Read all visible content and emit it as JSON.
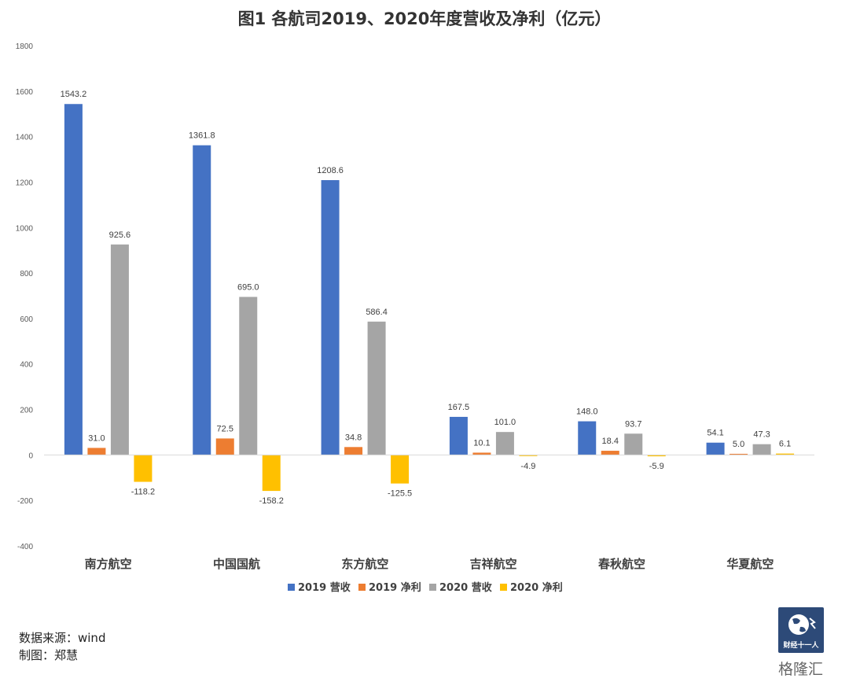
{
  "chart_data": {
    "type": "bar",
    "title": "图1 各航司2019、2020年度营收及净利（亿元）",
    "categories": [
      "南方航空",
      "中国国航",
      "东方航空",
      "吉祥航空",
      "春秋航空",
      "华夏航空"
    ],
    "series": [
      {
        "name": "2019 营收",
        "color": "#4472c4",
        "values": [
          1543.2,
          1361.8,
          1208.6,
          167.5,
          148.0,
          54.1
        ],
        "labels": [
          "1543.2",
          "1361.8",
          "1208.6",
          "167.5",
          "148.0",
          "54.1"
        ]
      },
      {
        "name": "2019 净利",
        "color": "#ed7d31",
        "values": [
          31.0,
          72.5,
          34.8,
          10.1,
          18.4,
          5.0
        ],
        "labels": [
          "31.0",
          "72.5",
          "34.8",
          "10.1",
          "18.4",
          "5.0"
        ]
      },
      {
        "name": "2020 营收",
        "color": "#a5a5a5",
        "values": [
          925.6,
          695.0,
          586.4,
          101.0,
          93.7,
          47.3
        ],
        "labels": [
          "925.6",
          "695.0",
          "586.4",
          "101.0",
          "93.7",
          "47.3"
        ]
      },
      {
        "name": "2020 净利",
        "color": "#ffc000",
        "values": [
          -118.2,
          -158.2,
          -125.5,
          -4.9,
          -5.9,
          6.1
        ],
        "labels": [
          "-118.2",
          "-158.2",
          "-125.5",
          "-4.9",
          "-5.9",
          "6.1"
        ]
      }
    ],
    "yticks": [
      "1800",
      "1600",
      "1400",
      "1200",
      "1000",
      "800",
      "600",
      "400",
      "200",
      "0",
      "-200",
      "-400"
    ],
    "ylim": [
      -400,
      1800
    ],
    "grid": false,
    "legend_position": "bottom"
  },
  "footer": {
    "source": "数据来源：wind",
    "author": "制图：郑慧"
  },
  "badge": {
    "label": "财经十一人"
  },
  "watermark": {
    "text": "格隆汇"
  }
}
